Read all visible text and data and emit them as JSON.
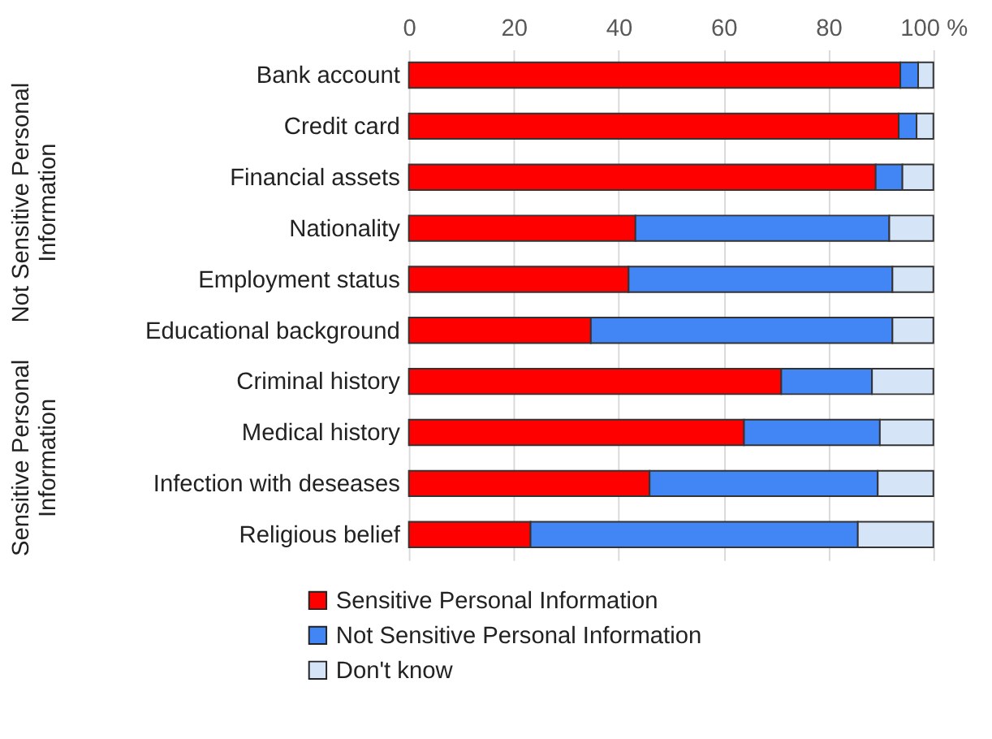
{
  "chart_data": {
    "type": "bar",
    "orientation": "horizontal",
    "stacked": true,
    "categories": [
      "Bank account",
      "Credit card",
      "Financial assets",
      "Nationality",
      "Employment status",
      "Educational background",
      "Criminal history",
      "Medical history",
      "Infection with deseases",
      "Religious belief"
    ],
    "series": [
      {
        "name": "Sensitive Personal Information",
        "color": "#ff0000",
        "values": [
          93.7,
          93.4,
          89.0,
          43.2,
          41.9,
          34.7,
          71.0,
          63.9,
          45.9,
          23.2
        ]
      },
      {
        "name": "Not Sensitive Personal Information",
        "color": "#4285f4",
        "values": [
          3.4,
          3.4,
          5.1,
          48.4,
          50.3,
          57.5,
          17.3,
          25.9,
          43.5,
          62.4
        ]
      },
      {
        "name": "Don't know",
        "color": "#d6e4f8",
        "values": [
          2.9,
          3.2,
          5.9,
          8.4,
          7.8,
          7.8,
          11.7,
          10.2,
          10.6,
          14.4
        ]
      }
    ],
    "xlim": [
      0,
      100
    ],
    "xticks": [
      0,
      20,
      40,
      60,
      80,
      {
        "value": 100,
        "label": "100 %"
      }
    ],
    "grid": "x",
    "legend": "bottom",
    "annotations": [
      "Not Sensitive Personal\nInformation",
      "Sensitive Personal\nInformation"
    ]
  }
}
